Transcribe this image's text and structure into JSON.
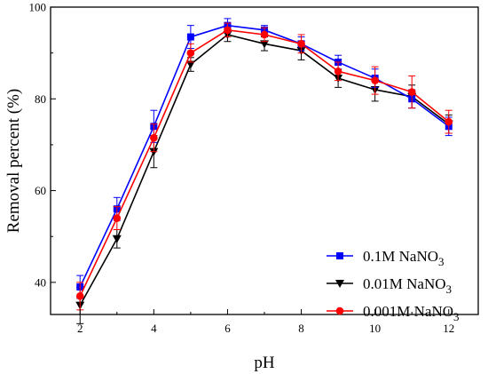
{
  "chart_data": {
    "type": "line",
    "xlabel": "pH",
    "ylabel": "Removal percent (%)",
    "xlim": [
      1.2,
      12.8
    ],
    "ylim": [
      33,
      100
    ],
    "x_ticks": [
      2,
      4,
      6,
      8,
      10,
      12
    ],
    "y_ticks": [
      40,
      60,
      80,
      100
    ],
    "x": [
      2,
      3,
      4,
      5,
      6,
      7,
      8,
      9,
      10,
      11,
      12
    ],
    "legend_position": "bottom-right",
    "series": [
      {
        "name": "0.1M NaNO3",
        "legend_main": "0.1M NaNO",
        "legend_sub": "3",
        "color": "#0000ff",
        "marker": "square",
        "values": [
          39,
          56,
          74,
          93.5,
          96,
          95,
          92,
          88,
          84.5,
          80,
          74
        ],
        "errors": [
          2.5,
          2.5,
          3.5,
          2.5,
          1.5,
          1.0,
          1.5,
          1.5,
          2.0,
          2.0,
          2.0
        ]
      },
      {
        "name": "0.01M NaNO3",
        "legend_main": "0.01M NaNO",
        "legend_sub": "3",
        "color": "#000000",
        "marker": "triangle-down",
        "values": [
          35,
          49.5,
          68.5,
          87.5,
          94,
          92,
          90.5,
          84.5,
          82,
          80.5,
          74.5
        ],
        "errors": [
          4,
          2,
          3.5,
          1.5,
          1.5,
          1.5,
          2,
          2,
          2.5,
          2.5,
          2
        ]
      },
      {
        "name": "0.001M NaNO3",
        "legend_main": "0.001M NaNO",
        "legend_sub": "3",
        "color": "#ff0000",
        "marker": "circle",
        "values": [
          37,
          54,
          71.5,
          90,
          95,
          94,
          92,
          86,
          84,
          81.5,
          75
        ],
        "errors": [
          3,
          2.5,
          3,
          2,
          1.5,
          1.5,
          2,
          2,
          3,
          3.5,
          2.5
        ]
      }
    ]
  }
}
